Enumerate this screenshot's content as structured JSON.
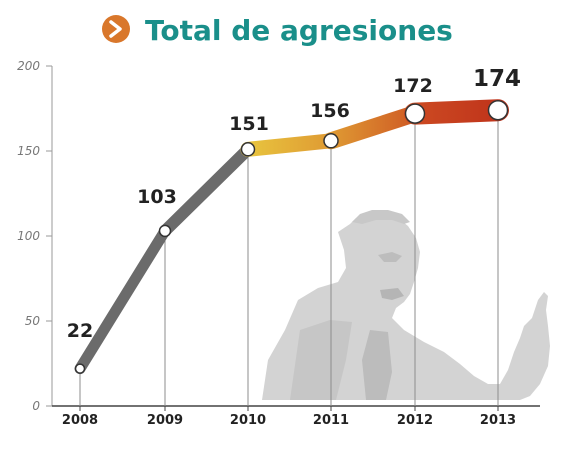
{
  "header": {
    "title": "Total de agresiones",
    "icon": "chevron-right-icon",
    "icon_color": "#d9772b",
    "title_color": "#1a8f8a"
  },
  "chart_data": {
    "type": "line",
    "categories": [
      "2008",
      "2009",
      "2010",
      "2011",
      "2012",
      "2013"
    ],
    "values": [
      22,
      103,
      151,
      156,
      172,
      174
    ],
    "data_labels": [
      "22",
      "103",
      "151",
      "156",
      "172",
      "174"
    ],
    "ylim": [
      0,
      200
    ],
    "yticks": [
      "0",
      "50",
      "100",
      "150",
      "200"
    ],
    "ytick_values": [
      0,
      50,
      100,
      150,
      200
    ],
    "segment_colors": [
      "#6b6b6b",
      "#6b6b6b",
      "#e6b33a",
      "#d4772b",
      "#c8401f"
    ],
    "grid": false
  },
  "background_figure": {
    "icon": "person-photo-silhouette",
    "color": "#d2d2d2"
  }
}
